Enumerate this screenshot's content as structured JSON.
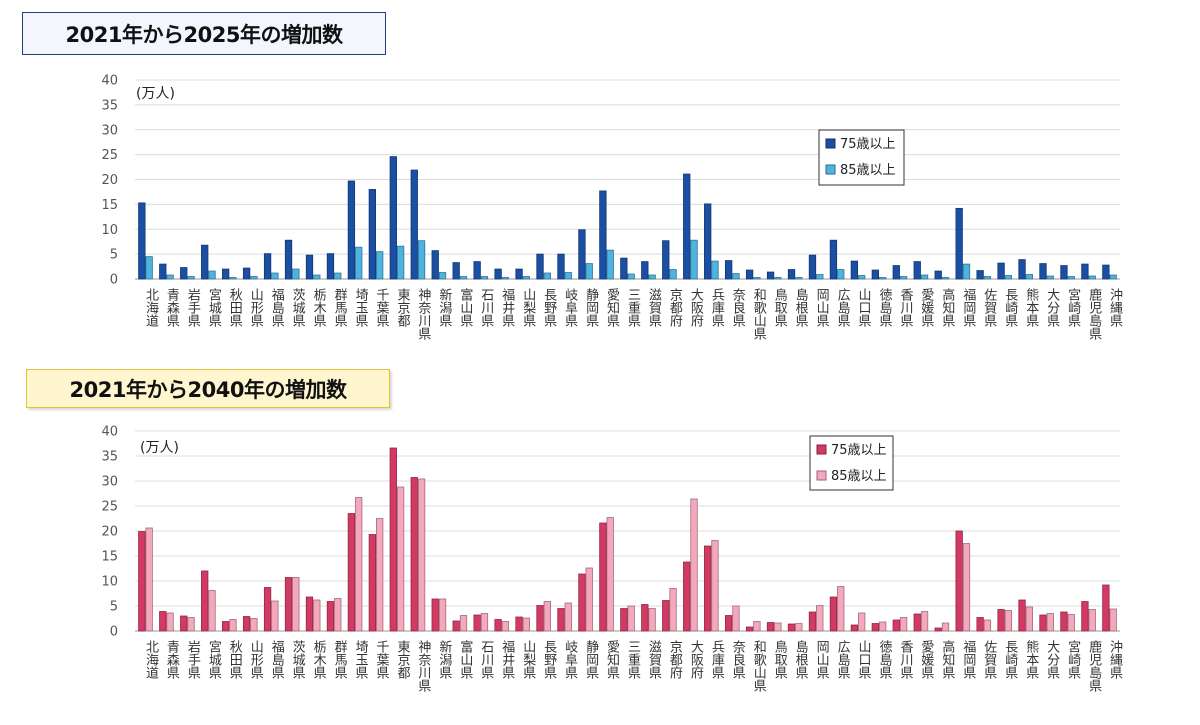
{
  "chart_data": [
    {
      "type": "bar",
      "title": "2021年から2025年の増加数",
      "ylabel": "(万人)",
      "ylim": [
        0,
        40
      ],
      "yticks": [
        0,
        5,
        10,
        15,
        20,
        25,
        30,
        35,
        40
      ],
      "legend_position": "top-right",
      "categories": [
        "北海道",
        "青森県",
        "岩手県",
        "宮城県",
        "秋田県",
        "山形県",
        "福島県",
        "茨城県",
        "栃木県",
        "群馬県",
        "埼玉県",
        "千葉県",
        "東京都",
        "神奈川県",
        "新潟県",
        "富山県",
        "石川県",
        "福井県",
        "山梨県",
        "長野県",
        "岐阜県",
        "静岡県",
        "愛知県",
        "三重県",
        "滋賀県",
        "京都府",
        "大阪府",
        "兵庫県",
        "奈良県",
        "和歌山県",
        "鳥取県",
        "島根県",
        "岡山県",
        "広島県",
        "山口県",
        "徳島県",
        "香川県",
        "愛媛県",
        "高知県",
        "福岡県",
        "佐賀県",
        "長崎県",
        "熊本県",
        "大分県",
        "宮崎県",
        "鹿児島県",
        "沖縄県"
      ],
      "series": [
        {
          "name": "75歳以上",
          "color": "#1b4fa3",
          "values": [
            15.3,
            3.0,
            2.3,
            6.8,
            2.0,
            2.2,
            5.1,
            7.8,
            4.8,
            5.1,
            19.7,
            18.0,
            24.6,
            21.9,
            5.7,
            3.3,
            3.5,
            2.0,
            2.0,
            5.0,
            5.0,
            9.9,
            17.7,
            4.2,
            3.5,
            7.7,
            21.1,
            15.1,
            3.7,
            1.8,
            1.4,
            1.9,
            4.8,
            7.8,
            3.6,
            1.8,
            2.7,
            3.5,
            1.6,
            14.2,
            1.7,
            3.2,
            3.9,
            3.1,
            2.7,
            3.0,
            2.8
          ]
        },
        {
          "name": "85歳以上",
          "color": "#4db3e0",
          "values": [
            4.5,
            0.8,
            0.5,
            1.6,
            0.3,
            0.5,
            1.2,
            2.0,
            0.8,
            1.2,
            6.4,
            5.5,
            6.6,
            7.7,
            1.3,
            0.5,
            0.5,
            0.3,
            0.5,
            1.2,
            1.3,
            3.1,
            5.8,
            1.0,
            0.8,
            1.9,
            7.8,
            3.6,
            1.1,
            0.3,
            0.3,
            0.3,
            0.9,
            1.9,
            0.7,
            0.3,
            0.5,
            0.8,
            0.3,
            3.0,
            0.5,
            0.7,
            0.9,
            0.6,
            0.5,
            0.6,
            0.8
          ]
        }
      ]
    },
    {
      "type": "bar",
      "title": "2021年から2040年の増加数",
      "ylabel": "(万人)",
      "ylim": [
        0,
        40
      ],
      "yticks": [
        0,
        5,
        10,
        15,
        20,
        25,
        30,
        35,
        40
      ],
      "legend_position": "top-right",
      "categories": [
        "北海道",
        "青森県",
        "岩手県",
        "宮城県",
        "秋田県",
        "山形県",
        "福島県",
        "茨城県",
        "栃木県",
        "群馬県",
        "埼玉県",
        "千葉県",
        "東京都",
        "神奈川県",
        "新潟県",
        "富山県",
        "石川県",
        "福井県",
        "山梨県",
        "長野県",
        "岐阜県",
        "静岡県",
        "愛知県",
        "三重県",
        "滋賀県",
        "京都府",
        "大阪府",
        "兵庫県",
        "奈良県",
        "和歌山県",
        "鳥取県",
        "島根県",
        "岡山県",
        "広島県",
        "山口県",
        "徳島県",
        "香川県",
        "愛媛県",
        "高知県",
        "福岡県",
        "佐賀県",
        "長崎県",
        "熊本県",
        "大分県",
        "宮崎県",
        "鹿児島県",
        "沖縄県"
      ],
      "series": [
        {
          "name": "75歳以上",
          "color": "#d23a63",
          "values": [
            19.9,
            3.9,
            3.0,
            12.0,
            1.9,
            2.9,
            8.7,
            10.7,
            6.8,
            5.9,
            23.5,
            19.3,
            36.6,
            30.7,
            6.4,
            2.0,
            3.2,
            2.3,
            2.8,
            5.1,
            4.5,
            11.4,
            21.6,
            4.5,
            5.3,
            6.1,
            13.8,
            17.0,
            3.1,
            0.8,
            1.7,
            1.4,
            3.8,
            6.8,
            1.2,
            1.5,
            2.2,
            3.4,
            0.6,
            20.0,
            2.7,
            4.3,
            6.2,
            3.2,
            3.8,
            5.9,
            9.2
          ]
        },
        {
          "name": "85歳以上",
          "color": "#f5a8bd",
          "values": [
            20.6,
            3.6,
            2.7,
            8.1,
            2.3,
            2.5,
            6.0,
            10.7,
            6.2,
            6.5,
            26.7,
            22.5,
            28.8,
            30.4,
            6.4,
            3.1,
            3.5,
            1.9,
            2.6,
            5.9,
            5.6,
            12.6,
            22.7,
            5.0,
            4.5,
            8.5,
            26.4,
            18.1,
            5.0,
            1.9,
            1.6,
            1.5,
            5.1,
            8.9,
            3.6,
            1.8,
            2.7,
            3.9,
            1.6,
            17.5,
            2.2,
            4.1,
            4.8,
            3.5,
            3.3,
            4.3,
            4.4
          ]
        }
      ]
    }
  ]
}
